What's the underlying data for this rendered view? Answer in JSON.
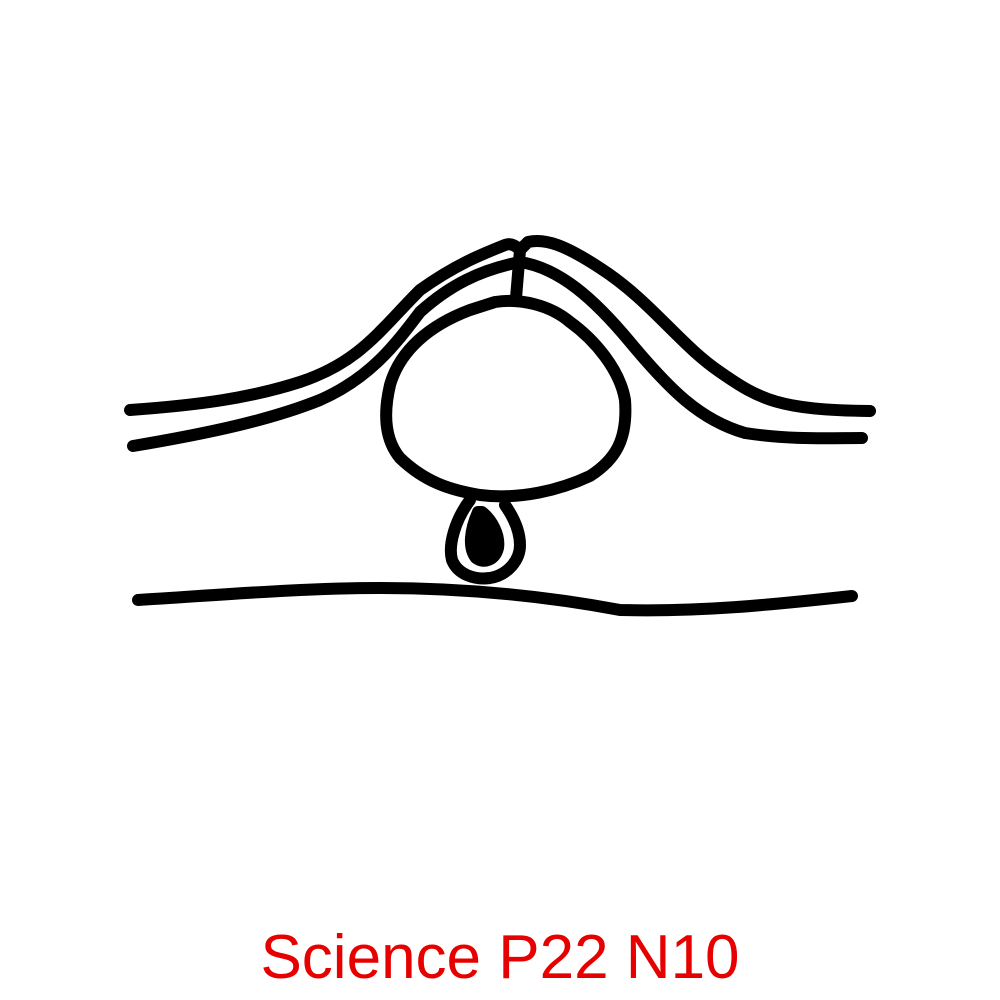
{
  "caption": {
    "text": "Science P22 N10",
    "color": "#e60000"
  },
  "drawing": {
    "stroke_color": "#000000",
    "background": "#ffffff"
  }
}
